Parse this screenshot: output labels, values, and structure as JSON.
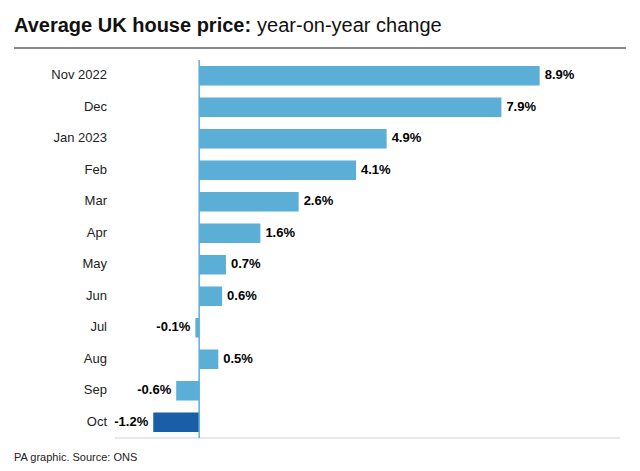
{
  "chart_data": {
    "type": "bar",
    "orientation": "horizontal",
    "title": "Average UK house price:",
    "subtitle": "year-on-year change",
    "annotations": [
      "PA graphic. Source: ONS"
    ],
    "categories": [
      "Nov 2022",
      "Dec",
      "Jan 2023",
      "Feb",
      "Mar",
      "Apr",
      "May",
      "Jun",
      "Jul",
      "Aug",
      "Sep",
      "Oct"
    ],
    "values": [
      8.9,
      7.9,
      4.9,
      4.1,
      2.6,
      1.6,
      0.7,
      0.6,
      -0.1,
      0.5,
      -0.6,
      -1.2
    ],
    "value_labels": [
      "8.9%",
      "7.9%",
      "4.9%",
      "4.1%",
      "2.6%",
      "1.6%",
      "0.7%",
      "0.6%",
      "-0.1%",
      "0.5%",
      "-0.6%",
      "-1.2%"
    ],
    "colors": [
      "#5bafd6",
      "#5bafd6",
      "#5bafd6",
      "#5bafd6",
      "#5bafd6",
      "#5bafd6",
      "#5bafd6",
      "#5bafd6",
      "#5bafd6",
      "#5bafd6",
      "#5bafd6",
      "#1a5ea8"
    ],
    "xlim": [
      -2.2,
      11.0
    ],
    "xticks": [],
    "tick_labels": "y",
    "data_labels": true,
    "grid": false
  }
}
